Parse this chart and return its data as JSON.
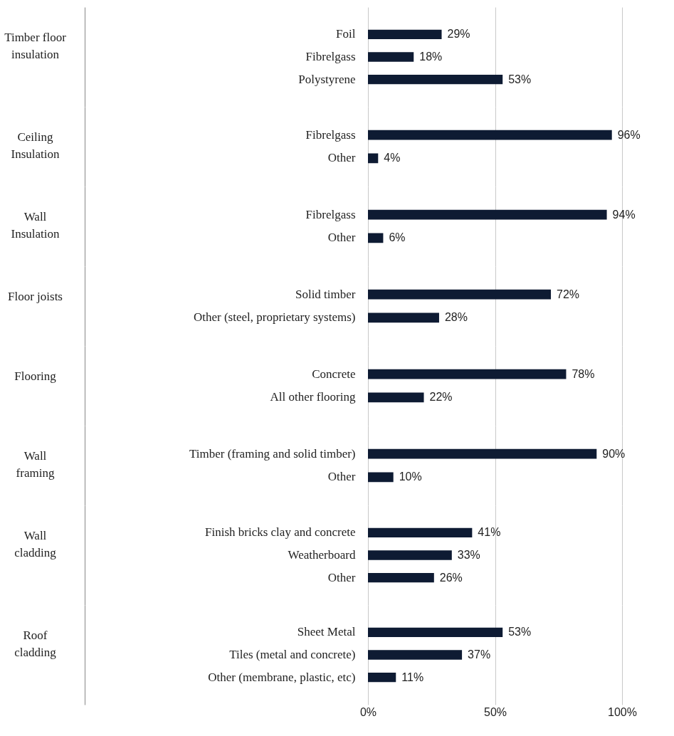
{
  "chart_data": [
    {
      "type": "bar",
      "orientation": "horizontal",
      "ylabel": "Timber floor\ninsulation",
      "categories": [
        "Foil",
        "Fibrelgass",
        "Polystyrene"
      ],
      "values": [
        29,
        18,
        53
      ],
      "value_labels": [
        "29%",
        "18%",
        "53%"
      ],
      "color": "#0e1b33",
      "xlim": [
        0,
        100
      ],
      "xticks": [
        0,
        50,
        100
      ],
      "grid": "x",
      "tick_labels": "y"
    },
    {
      "type": "bar",
      "orientation": "horizontal",
      "ylabel": "Ceiling\nInsulation",
      "categories": [
        "Fibrelgass",
        "Other"
      ],
      "values": [
        96,
        4
      ],
      "value_labels": [
        "96%",
        "4%"
      ],
      "color": "#0e1b33",
      "xlim": [
        0,
        100
      ],
      "xticks": [
        0,
        50,
        100
      ],
      "grid": "x",
      "tick_labels": "y"
    },
    {
      "type": "bar",
      "orientation": "horizontal",
      "ylabel": "Wall\nInsulation",
      "categories": [
        "Fibrelgass",
        "Other"
      ],
      "values": [
        94,
        6
      ],
      "value_labels": [
        "94%",
        "6%"
      ],
      "color": "#0e1b33",
      "xlim": [
        0,
        100
      ],
      "xticks": [
        0,
        50,
        100
      ],
      "grid": "x",
      "tick_labels": "y"
    },
    {
      "type": "bar",
      "orientation": "horizontal",
      "ylabel": "Floor joists",
      "categories": [
        "Solid timber",
        "Other (steel, proprietary systems)"
      ],
      "values": [
        72,
        28
      ],
      "value_labels": [
        "72%",
        "28%"
      ],
      "color": "#0e1b33",
      "xlim": [
        0,
        100
      ],
      "xticks": [
        0,
        50,
        100
      ],
      "grid": "x",
      "tick_labels": "y"
    },
    {
      "type": "bar",
      "orientation": "horizontal",
      "ylabel": "Flooring",
      "categories": [
        "Concrete",
        "All other flooring"
      ],
      "values": [
        78,
        22
      ],
      "value_labels": [
        "78%",
        "22%"
      ],
      "color": "#0e1b33",
      "xlim": [
        0,
        100
      ],
      "xticks": [
        0,
        50,
        100
      ],
      "grid": "x",
      "tick_labels": "y"
    },
    {
      "type": "bar",
      "orientation": "horizontal",
      "ylabel": "Wall\nframing",
      "categories": [
        "Timber (framing and solid timber)",
        "Other"
      ],
      "values": [
        90,
        10
      ],
      "value_labels": [
        "90%",
        "10%"
      ],
      "color": "#0e1b33",
      "xlim": [
        0,
        100
      ],
      "xticks": [
        0,
        50,
        100
      ],
      "grid": "x",
      "tick_labels": "y"
    },
    {
      "type": "bar",
      "orientation": "horizontal",
      "ylabel": "Wall\ncladding",
      "categories": [
        "Finish bricks clay and concrete",
        "Weatherboard",
        "Other"
      ],
      "values": [
        41,
        33,
        26
      ],
      "value_labels": [
        "41%",
        "33%",
        "26%"
      ],
      "color": "#0e1b33",
      "xlim": [
        0,
        100
      ],
      "xticks": [
        0,
        50,
        100
      ],
      "grid": "x",
      "tick_labels": "y"
    },
    {
      "type": "bar",
      "orientation": "horizontal",
      "ylabel": "Roof\ncladding",
      "categories": [
        "Sheet Metal",
        "Tiles (metal and concrete)",
        "Other (membrane, plastic, etc)"
      ],
      "values": [
        53,
        37,
        11
      ],
      "value_labels": [
        "53%",
        "37%",
        "11%"
      ],
      "color": "#0e1b33",
      "xlim": [
        0,
        100
      ],
      "xticks": [
        {
          "value": 0,
          "label": "0%"
        },
        {
          "value": 50,
          "label": "50%"
        },
        {
          "value": 100,
          "label": "100%"
        }
      ],
      "grid": "x"
    }
  ]
}
